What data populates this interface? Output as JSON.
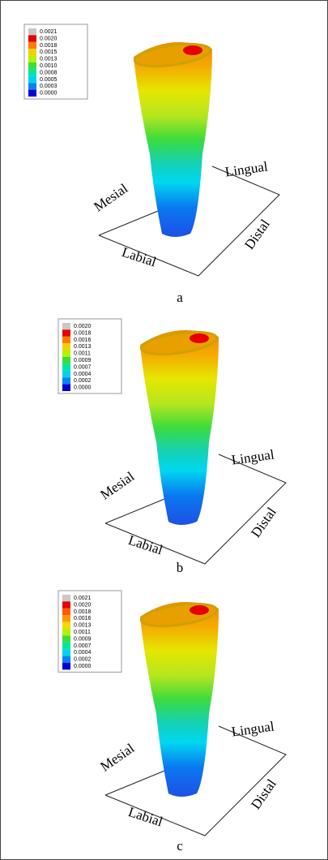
{
  "panels": [
    {
      "legend": [
        "0.0021",
        "0.0020",
        "0.0018",
        "0.0015",
        "0.0013",
        "0.0010",
        "0.0008",
        "0.0005",
        "0.0003",
        "0.0000"
      ],
      "labels": {
        "mesial": "Mesial",
        "lingual": "Lingual",
        "distal": "Distal",
        "labial": "Labial"
      },
      "caption": "a"
    },
    {
      "legend": [
        "0.0020",
        "0.0018",
        "0.0016",
        "0.0013",
        "0.0011",
        "0.0009",
        "0.0007",
        "0.0004",
        "0.0002",
        "0.0000"
      ],
      "labels": {
        "mesial": "Mesial",
        "lingual": "Lingual",
        "distal": "Distal",
        "labial": "Labial"
      },
      "caption": "b"
    },
    {
      "legend": [
        "0.0021",
        "0.0020",
        "0.0018",
        "0.0016",
        "0.0013",
        "0.0011",
        "0.0009",
        "0.0007",
        "0.0004",
        "0.0002",
        "0.0000"
      ],
      "labels": {
        "mesial": "Mesial",
        "lingual": "Lingual",
        "distal": "Distal",
        "labial": "Labial"
      },
      "caption": "c"
    }
  ]
}
